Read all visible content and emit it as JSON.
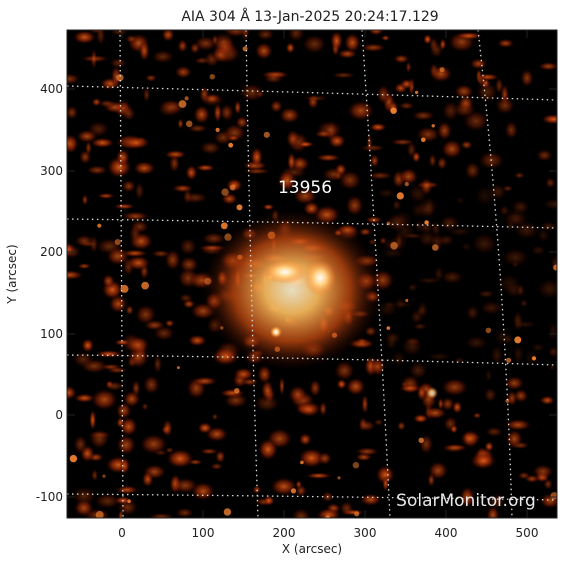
{
  "title": "AIA 304 Å 13-Jan-2025 20:24:17.129",
  "xlabel": "X (arcsec)",
  "ylabel": "Y (arcsec)",
  "x_ticks": [
    "0",
    "100",
    "200",
    "300",
    "400",
    "500"
  ],
  "y_ticks": [
    "400",
    "300",
    "200",
    "100",
    "0",
    "-100"
  ],
  "region_label": "13956",
  "watermark": "SolarMonitor.org",
  "colors": {
    "background": "#000000",
    "emission_dim": "#5a1200",
    "emission_mid": "#c84a10",
    "emission_bright": "#ffe8b0",
    "grid": "#dcdcdc"
  }
}
